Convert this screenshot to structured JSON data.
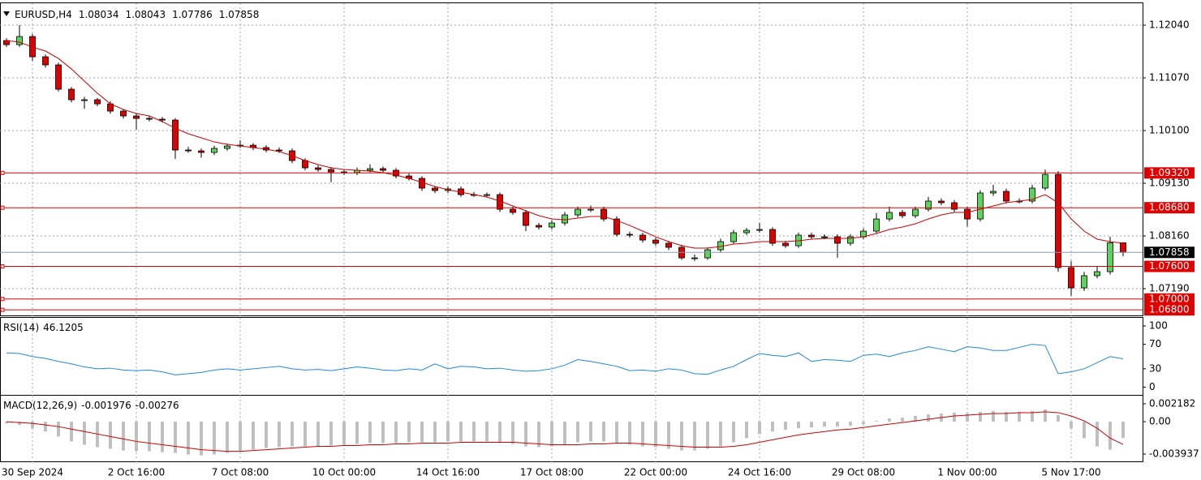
{
  "chart_data": [
    {
      "type": "candlestick",
      "title": "EURUSD,H4",
      "xlim": [
        -0.5,
        87.5
      ],
      "xticks": [
        {
          "value": 2,
          "label": "30 Sep 2024"
        },
        {
          "value": 10,
          "label": "2 Oct 16:00"
        },
        {
          "value": 18,
          "label": "7 Oct 08:00"
        },
        {
          "value": 26,
          "label": "10 Oct 00:00"
        },
        {
          "value": 34,
          "label": "14 Oct 16:00"
        },
        {
          "value": 42,
          "label": "17 Oct 08:00"
        },
        {
          "value": 50,
          "label": "22 Oct 00:00"
        },
        {
          "value": 58,
          "label": "24 Oct 16:00"
        },
        {
          "value": 66,
          "label": "29 Oct 08:00"
        },
        {
          "value": 74,
          "label": "1 Nov 00:00"
        },
        {
          "value": 82,
          "label": "5 Nov 17:00"
        }
      ],
      "ylim": [
        1.06683,
        1.12384
      ],
      "yticks": [
        {
          "value": 1.1204,
          "label": "1.12040"
        },
        {
          "value": 1.1107,
          "label": "1.11070"
        },
        {
          "value": 1.101,
          "label": "1.10100"
        },
        {
          "value": 1.0913,
          "label": "1.09130"
        },
        {
          "value": 1.0816,
          "label": "1.08160"
        },
        {
          "value": 1.0719,
          "label": "1.07190"
        }
      ],
      "grid": true,
      "up_color": "#5ad45a",
      "down_color": "#e00000",
      "open": [
        1.11757,
        1.11682,
        1.11831,
        1.11458,
        1.11309,
        1.10861,
        1.10667,
        1.10667,
        1.10592,
        1.10458,
        1.10369,
        1.10324,
        1.10309,
        1.10294,
        1.09742,
        1.09727,
        1.09697,
        1.09772,
        1.09816,
        1.09831,
        1.09787,
        1.09742,
        1.09727,
        1.09548,
        1.09414,
        1.09384,
        1.09339,
        1.09324,
        1.09369,
        1.09399,
        1.09369,
        1.09264,
        1.0922,
        1.09041,
        1.08996,
        1.09026,
        1.08921,
        1.08921,
        1.08921,
        1.08652,
        1.08593,
        1.08354,
        1.08324,
        1.08399,
        1.08548,
        1.08652,
        1.08652,
        1.08473,
        1.0819,
        1.08175,
        1.08085,
        1.08026,
        1.07951,
        1.07757,
        1.07757,
        1.07906,
        1.08056,
        1.0822,
        1.08264,
        1.08279,
        1.08026,
        1.07981,
        1.08175,
        1.08145,
        1.08145,
        1.08026,
        1.08145,
        1.08249,
        1.08473,
        1.08593,
        1.08533,
        1.08652,
        1.08802,
        1.08772,
        1.08652,
        1.08473,
        1.08951,
        1.08981,
        1.08802,
        1.08802,
        1.09041,
        1.09294,
        1.07578,
        1.07205,
        1.07429,
        1.07503,
        1.08034
      ],
      "high": [
        1.118,
        1.1204,
        1.1188,
        1.115,
        1.1135,
        1.109,
        1.1072,
        1.107,
        1.1064,
        1.105,
        1.1041,
        1.1037,
        1.1035,
        1.1033,
        1.098,
        1.0977,
        1.0982,
        1.0986,
        1.0992,
        1.0987,
        1.0983,
        1.0979,
        1.0977,
        1.0959,
        1.0946,
        1.0943,
        1.0938,
        1.0942,
        1.0948,
        1.0944,
        1.0941,
        1.0931,
        1.0926,
        1.0908,
        1.0907,
        1.0907,
        1.0897,
        1.0896,
        1.0896,
        1.087,
        1.0864,
        1.084,
        1.0845,
        1.086,
        1.087,
        1.0872,
        1.087,
        1.0852,
        1.0824,
        1.0822,
        1.0813,
        1.0807,
        1.08,
        1.0782,
        1.0795,
        1.0811,
        1.0827,
        1.0831,
        1.084,
        1.0832,
        1.0807,
        1.0822,
        1.0822,
        1.0819,
        1.0819,
        1.0819,
        1.083,
        1.0858,
        1.087,
        1.0864,
        1.087,
        1.0888,
        1.0885,
        1.0882,
        1.087,
        1.09,
        1.091,
        1.0903,
        1.0885,
        1.091,
        1.0938,
        1.0935,
        1.077,
        1.075,
        1.076,
        1.0815,
        1.08043
      ],
      "low": [
        1.1164,
        1.1164,
        1.1138,
        1.1126,
        1.1082,
        1.1062,
        1.105,
        1.1055,
        1.1041,
        1.1032,
        1.1012,
        1.1027,
        1.1025,
        1.0958,
        1.0969,
        1.096,
        1.0965,
        1.0973,
        1.0978,
        1.0974,
        1.097,
        1.0969,
        1.095,
        1.0937,
        1.0934,
        1.0915,
        1.0928,
        1.0928,
        1.0933,
        1.0933,
        1.0922,
        1.0918,
        1.0899,
        1.0895,
        1.0895,
        1.0888,
        1.0888,
        1.0888,
        1.086,
        1.0855,
        1.0825,
        1.0828,
        1.0828,
        1.0835,
        1.085,
        1.086,
        1.0843,
        1.0815,
        1.0813,
        1.0804,
        1.0798,
        1.079,
        1.0772,
        1.077,
        1.0772,
        1.0786,
        1.0801,
        1.0818,
        1.0822,
        1.0798,
        1.0794,
        1.0794,
        1.081,
        1.081,
        1.0776,
        1.0798,
        1.081,
        1.082,
        1.0843,
        1.0849,
        1.0849,
        1.0861,
        1.0873,
        1.086,
        1.0834,
        1.0843,
        1.089,
        1.0876,
        1.0876,
        1.0876,
        1.09,
        1.075,
        1.0706,
        1.0715,
        1.0738,
        1.0745,
        1.07786
      ],
      "close": [
        1.11682,
        1.11831,
        1.11458,
        1.11309,
        1.10861,
        1.10667,
        1.10667,
        1.10592,
        1.10458,
        1.10369,
        1.10324,
        1.10309,
        1.10294,
        1.09742,
        1.09727,
        1.09697,
        1.09772,
        1.09816,
        1.09831,
        1.09787,
        1.09742,
        1.09727,
        1.09548,
        1.09414,
        1.09384,
        1.09339,
        1.09324,
        1.09369,
        1.09399,
        1.09369,
        1.09264,
        1.0922,
        1.09041,
        1.08996,
        1.09026,
        1.08921,
        1.08921,
        1.08921,
        1.08652,
        1.08593,
        1.08354,
        1.08324,
        1.08399,
        1.08548,
        1.08652,
        1.08652,
        1.08473,
        1.0819,
        1.08175,
        1.08085,
        1.08026,
        1.07951,
        1.07757,
        1.07757,
        1.07906,
        1.08056,
        1.0822,
        1.08264,
        1.08279,
        1.08026,
        1.07981,
        1.08175,
        1.08145,
        1.08145,
        1.08026,
        1.08145,
        1.08249,
        1.08473,
        1.08593,
        1.08533,
        1.08652,
        1.08802,
        1.08772,
        1.08652,
        1.08473,
        1.08951,
        1.08981,
        1.08802,
        1.08802,
        1.09041,
        1.09294,
        1.07578,
        1.07205,
        1.07429,
        1.07503,
        1.08034,
        1.07858
      ],
      "ma": {
        "color": "#d00000",
        "values": [
          1.11757,
          1.11727,
          1.11637,
          1.11563,
          1.11428,
          1.11234,
          1.11011,
          1.10787,
          1.10593,
          1.10488,
          1.10414,
          1.10369,
          1.10265,
          1.10145,
          1.10041,
          1.09966,
          1.09891,
          1.09847,
          1.09817,
          1.09787,
          1.09757,
          1.09712,
          1.09638,
          1.09548,
          1.09474,
          1.09414,
          1.09384,
          1.09369,
          1.09354,
          1.09324,
          1.0928,
          1.0922,
          1.09145,
          1.09071,
          1.09011,
          1.08966,
          1.08921,
          1.08877,
          1.08802,
          1.08713,
          1.08623,
          1.08534,
          1.08474,
          1.08459,
          1.08489,
          1.08519,
          1.08519,
          1.08444,
          1.08354,
          1.0825,
          1.08145,
          1.08056,
          1.07981,
          1.07937,
          1.07937,
          1.07966,
          1.08011,
          1.08026,
          1.08056,
          1.08056,
          1.08056,
          1.08071,
          1.08101,
          1.08116,
          1.08116,
          1.08116,
          1.08145,
          1.08205,
          1.0828,
          1.08325,
          1.08384,
          1.08474,
          1.08548,
          1.08593,
          1.08593,
          1.08653,
          1.08713,
          1.08772,
          1.08802,
          1.08832,
          1.08921,
          1.08772,
          1.08474,
          1.0825,
          1.08101,
          1.08056,
          1.08026
        ]
      },
      "levels": {
        "color": "#e00000",
        "values": [
          {
            "value": 1.0932,
            "label": "1.09320"
          },
          {
            "value": 1.0868,
            "label": "1.08680"
          },
          {
            "value": 1.076,
            "label": "1.07600"
          },
          {
            "value": 1.07,
            "label": "1.07000"
          },
          {
            "value": 1.068,
            "label": "1.06800"
          }
        ]
      }
    },
    {
      "type": "line",
      "title": "RSI(14)",
      "color": "#1e88e5",
      "ylim": [
        -14,
        108
      ],
      "yticks": [
        100,
        70,
        30,
        0
      ],
      "values": [
        56,
        55,
        50,
        47,
        42,
        38,
        33,
        30,
        31,
        28,
        27,
        28,
        25,
        20,
        22,
        24,
        28,
        30,
        28,
        30,
        32,
        34,
        30,
        28,
        29,
        27,
        30,
        33,
        31,
        28,
        27,
        30,
        28,
        38,
        30,
        34,
        33,
        30,
        31,
        28,
        26,
        27,
        30,
        36,
        45,
        42,
        38,
        34,
        27,
        28,
        26,
        30,
        28,
        22,
        21,
        28,
        34,
        45,
        55,
        52,
        50,
        56,
        42,
        45,
        44,
        42,
        52,
        54,
        50,
        56,
        60,
        66,
        62,
        58,
        66,
        64,
        60,
        60,
        65,
        70,
        68,
        22,
        25,
        30,
        40,
        50,
        46.1205
      ]
    },
    {
      "type": "macd",
      "title": "MACD(12,26,9)",
      "ylim": [
        -0.00492,
        0.00277
      ],
      "yticks": [
        0.002182,
        {
          "value": 0,
          "label": "0.00"
        },
        -0.003937
      ],
      "histogram": {
        "color": "#c0c0c0",
        "values": [
          -0.0002,
          -0.0004,
          -0.0008,
          -0.0012,
          -0.0018,
          -0.0024,
          -0.0028,
          -0.0031,
          -0.0033,
          -0.0035,
          -0.0036,
          -0.0036,
          -0.0037,
          -0.0038,
          -0.004,
          -0.0041,
          -0.004,
          -0.0038,
          -0.0036,
          -0.0034,
          -0.0032,
          -0.0031,
          -0.003,
          -0.003,
          -0.003,
          -0.0029,
          -0.0028,
          -0.0027,
          -0.0026,
          -0.0026,
          -0.0026,
          -0.0025,
          -0.0025,
          -0.0025,
          -0.0024,
          -0.0024,
          -0.0024,
          -0.0024,
          -0.0026,
          -0.0027,
          -0.003,
          -0.0031,
          -0.003,
          -0.0028,
          -0.0025,
          -0.0024,
          -0.0024,
          -0.0026,
          -0.0028,
          -0.003,
          -0.0031,
          -0.0033,
          -0.0035,
          -0.0035,
          -0.0033,
          -0.003,
          -0.0025,
          -0.002,
          -0.0015,
          -0.0012,
          -0.001,
          -0.0008,
          -0.0007,
          -0.0006,
          -0.0006,
          -0.0005,
          -0.0003,
          0.0001,
          0.0004,
          0.0005,
          0.0007,
          0.0009,
          0.001,
          0.0011,
          0.001,
          0.0012,
          0.0013,
          0.0012,
          0.0012,
          0.0013,
          0.0015,
          0.0008,
          -0.0008,
          -0.002,
          -0.003,
          -0.0034,
          -0.001976
        ]
      },
      "signal": {
        "color": "#d00000",
        "values": [
          0,
          -0.0001,
          -0.0002,
          -0.0004,
          -0.0006,
          -0.0009,
          -0.0012,
          -0.0015,
          -0.0018,
          -0.0021,
          -0.0024,
          -0.0026,
          -0.0028,
          -0.003,
          -0.0032,
          -0.0034,
          -0.0035,
          -0.0036,
          -0.0036,
          -0.0035,
          -0.0034,
          -0.0033,
          -0.0032,
          -0.0031,
          -0.003,
          -0.003,
          -0.0029,
          -0.0029,
          -0.0028,
          -0.0028,
          -0.0027,
          -0.0027,
          -0.0026,
          -0.0026,
          -0.0026,
          -0.0025,
          -0.0025,
          -0.0025,
          -0.0025,
          -0.0025,
          -0.0026,
          -0.0027,
          -0.0028,
          -0.0028,
          -0.0028,
          -0.0027,
          -0.0027,
          -0.0026,
          -0.0026,
          -0.0027,
          -0.0028,
          -0.0029,
          -0.003,
          -0.0031,
          -0.0031,
          -0.0031,
          -0.003,
          -0.0028,
          -0.0025,
          -0.0022,
          -0.0019,
          -0.0016,
          -0.0014,
          -0.0012,
          -0.001,
          -0.0009,
          -0.0007,
          -0.0005,
          -0.0003,
          -0.0001,
          0.0001,
          0.0003,
          0.0005,
          0.0007,
          0.0008,
          0.0009,
          0.001,
          0.001,
          0.0011,
          0.0011,
          0.0012,
          0.0011,
          0.0007,
          0.0001,
          -0.0008,
          -0.002,
          -0.00276
        ]
      }
    }
  ]
}
